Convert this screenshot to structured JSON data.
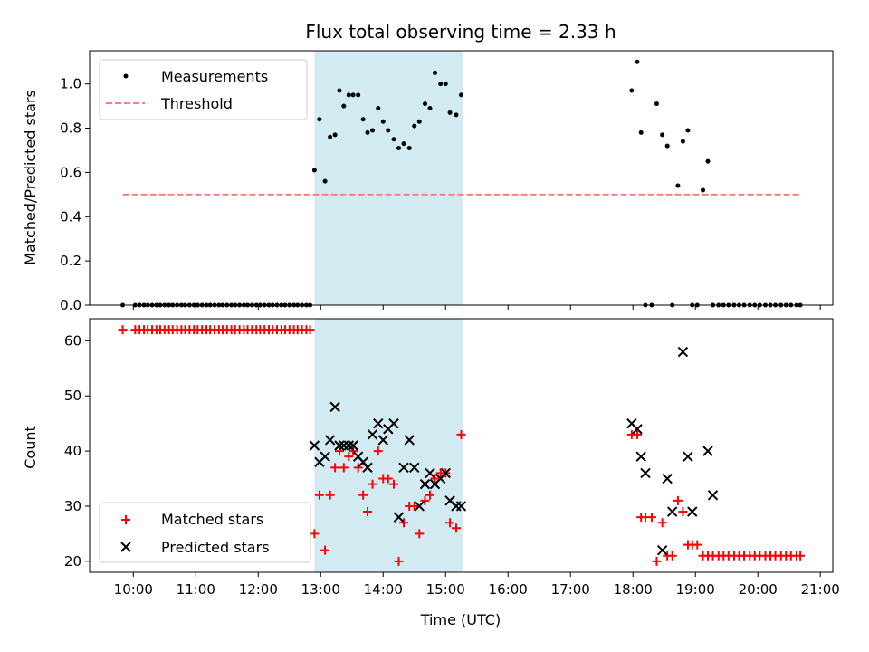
{
  "chart_data": {
    "title": "Flux total observing time = 2.33 h",
    "xlabel": "Time (UTC)",
    "x_units": "decimal hours UTC",
    "xlim": [
      9.3,
      21.2
    ],
    "x_ticks": [
      {
        "value": 10,
        "label": "10:00"
      },
      {
        "value": 11,
        "label": "11:00"
      },
      {
        "value": 12,
        "label": "12:00"
      },
      {
        "value": 13,
        "label": "13:00"
      },
      {
        "value": 14,
        "label": "14:00"
      },
      {
        "value": 15,
        "label": "15:00"
      },
      {
        "value": 16,
        "label": "16:00"
      },
      {
        "value": 17,
        "label": "17:00"
      },
      {
        "value": 18,
        "label": "18:00"
      },
      {
        "value": 19,
        "label": "19:00"
      },
      {
        "value": 20,
        "label": "20:00"
      },
      {
        "value": 21,
        "label": "21:00"
      }
    ],
    "shaded_interval": {
      "x_start": 12.9,
      "x_end": 15.27,
      "color": "#add8e6"
    },
    "panels": [
      {
        "type": "scatter",
        "ylabel": "Matched/Predicted stars",
        "ylim": [
          0,
          1.15
        ],
        "y_ticks": [
          0.0,
          0.2,
          0.4,
          0.6,
          0.8,
          1.0
        ],
        "y_tick_labels": [
          "0.0",
          "0.2",
          "0.4",
          "0.6",
          "0.8",
          "1.0"
        ],
        "legend_position": "upper-left",
        "series": [
          {
            "name": "Measurements",
            "kind": "scatter",
            "marker": "dot",
            "color": "#000000",
            "x": [
              9.83,
              10.03,
              10.1,
              10.17,
              10.23,
              10.3,
              10.37,
              10.43,
              10.5,
              10.57,
              10.63,
              10.7,
              10.77,
              10.83,
              10.9,
              10.97,
              11.03,
              11.1,
              11.17,
              11.23,
              11.3,
              11.37,
              11.43,
              11.5,
              11.57,
              11.63,
              11.7,
              11.77,
              11.83,
              11.9,
              11.97,
              12.03,
              12.1,
              12.17,
              12.23,
              12.3,
              12.37,
              12.43,
              12.5,
              12.57,
              12.63,
              12.7,
              12.77,
              12.83,
              12.9,
              12.98,
              13.07,
              13.15,
              13.23,
              13.3,
              13.37,
              13.45,
              13.52,
              13.6,
              13.68,
              13.75,
              13.83,
              13.92,
              14,
              14.08,
              14.17,
              14.25,
              14.33,
              14.42,
              14.5,
              14.58,
              14.67,
              14.75,
              14.83,
              14.92,
              15,
              15.07,
              15.17,
              15.25,
              17.98,
              18.07,
              18.13,
              18.2,
              18.3,
              18.38,
              18.47,
              18.55,
              18.63,
              18.72,
              18.8,
              18.88,
              18.95,
              19.03,
              19.12,
              19.2,
              19.28,
              19.37,
              19.45,
              19.53,
              19.62,
              19.7,
              19.78,
              19.87,
              19.95,
              20.03,
              20.12,
              20.2,
              20.28,
              20.37,
              20.45,
              20.53,
              20.62,
              20.68
            ],
            "y": [
              0,
              0,
              0,
              0,
              0,
              0,
              0,
              0,
              0,
              0,
              0,
              0,
              0,
              0,
              0,
              0,
              0,
              0,
              0,
              0,
              0,
              0,
              0,
              0,
              0,
              0,
              0,
              0,
              0,
              0,
              0,
              0,
              0,
              0,
              0,
              0,
              0,
              0,
              0,
              0,
              0,
              0,
              0,
              0,
              0.61,
              0.84,
              0.56,
              0.76,
              0.77,
              0.97,
              0.9,
              0.95,
              0.95,
              0.95,
              0.84,
              0.78,
              0.79,
              0.89,
              0.83,
              0.79,
              0.75,
              0.71,
              0.73,
              0.71,
              0.81,
              0.83,
              0.91,
              0.89,
              1.05,
              1.0,
              1.0,
              0.87,
              0.86,
              0.95,
              0.97,
              1.1,
              0.78,
              0,
              0,
              0.91,
              0.77,
              0.72,
              0,
              0.54,
              0.74,
              0.79,
              0,
              0,
              0.52,
              0.65,
              0,
              0,
              0,
              0,
              0,
              0,
              0,
              0,
              0,
              0,
              0,
              0,
              0,
              0,
              0,
              0,
              0,
              0
            ]
          },
          {
            "name": "Threshold",
            "kind": "line",
            "style": "dashed",
            "color": "#ff7f7f",
            "x": [
              9.83,
              20.68
            ],
            "y": [
              0.5,
              0.5
            ]
          }
        ]
      },
      {
        "type": "scatter",
        "ylabel": "Count",
        "ylim": [
          18,
          64
        ],
        "y_ticks": [
          20,
          30,
          40,
          50,
          60
        ],
        "y_tick_labels": [
          "20",
          "30",
          "40",
          "50",
          "60"
        ],
        "legend_position": "lower-left",
        "series": [
          {
            "name": "Matched stars",
            "kind": "scatter",
            "marker": "plus",
            "color": "#ff0000",
            "x": [
              9.83,
              10.03,
              10.1,
              10.17,
              10.23,
              10.3,
              10.37,
              10.43,
              10.5,
              10.57,
              10.63,
              10.7,
              10.77,
              10.83,
              10.9,
              10.97,
              11.03,
              11.1,
              11.17,
              11.23,
              11.3,
              11.37,
              11.43,
              11.5,
              11.57,
              11.63,
              11.7,
              11.77,
              11.83,
              11.9,
              11.97,
              12.03,
              12.1,
              12.17,
              12.23,
              12.3,
              12.37,
              12.43,
              12.5,
              12.57,
              12.63,
              12.7,
              12.77,
              12.83,
              12.9,
              12.98,
              13.07,
              13.15,
              13.23,
              13.3,
              13.37,
              13.45,
              13.52,
              13.6,
              13.68,
              13.75,
              13.83,
              13.92,
              14,
              14.08,
              14.17,
              14.25,
              14.33,
              14.42,
              14.5,
              14.58,
              14.67,
              14.75,
              14.83,
              14.92,
              15,
              15.07,
              15.17,
              15.25,
              17.98,
              18.07,
              18.13,
              18.2,
              18.3,
              18.38,
              18.47,
              18.55,
              18.63,
              18.72,
              18.8,
              18.88,
              18.95,
              19.03,
              19.12,
              19.2,
              19.28,
              19.37,
              19.45,
              19.53,
              19.62,
              19.7,
              19.78,
              19.87,
              19.95,
              20.03,
              20.12,
              20.2,
              20.28,
              20.37,
              20.45,
              20.53,
              20.62,
              20.68
            ],
            "y": [
              62,
              62,
              62,
              62,
              62,
              62,
              62,
              62,
              62,
              62,
              62,
              62,
              62,
              62,
              62,
              62,
              62,
              62,
              62,
              62,
              62,
              62,
              62,
              62,
              62,
              62,
              62,
              62,
              62,
              62,
              62,
              62,
              62,
              62,
              62,
              62,
              62,
              62,
              62,
              62,
              62,
              62,
              62,
              62,
              25,
              32,
              22,
              32,
              37,
              40,
              37,
              39,
              40,
              37,
              32,
              29,
              34,
              40,
              35,
              35,
              34,
              20,
              27,
              30,
              30,
              25,
              31,
              32,
              35,
              36,
              36,
              27,
              26,
              43,
              43,
              43,
              28,
              28,
              28,
              20,
              27,
              21,
              21,
              31,
              29,
              23,
              23,
              23,
              21,
              21,
              21,
              21,
              21,
              21,
              21,
              21,
              21,
              21,
              21,
              21,
              21,
              21,
              21,
              21,
              21,
              21,
              21,
              21
            ]
          },
          {
            "name": "Predicted stars",
            "kind": "scatter",
            "marker": "x",
            "color": "#000000",
            "x": [
              12.9,
              12.98,
              13.07,
              13.15,
              13.23,
              13.3,
              13.37,
              13.45,
              13.52,
              13.6,
              13.68,
              13.75,
              13.83,
              13.92,
              14,
              14.08,
              14.17,
              14.25,
              14.33,
              14.42,
              14.5,
              14.58,
              14.67,
              14.75,
              14.83,
              14.92,
              15,
              15.07,
              15.17,
              15.25,
              17.98,
              18.07,
              18.13,
              18.2,
              18.47,
              18.55,
              18.63,
              18.8,
              18.88,
              18.95,
              19.2,
              19.28
            ],
            "y": [
              41,
              38,
              39,
              42,
              48,
              41,
              41,
              41,
              41,
              39,
              38,
              37,
              43,
              45,
              42,
              44,
              45,
              28,
              37,
              42,
              37,
              30,
              34,
              36,
              34,
              35,
              36,
              31,
              30,
              30,
              45,
              44,
              39,
              36,
              22,
              35,
              29,
              58,
              39,
              29,
              40,
              32
            ]
          }
        ]
      }
    ]
  },
  "colors": {
    "measurements": "#000000",
    "threshold": "#ff7f7f",
    "matched": "#ff0000",
    "predicted": "#000000",
    "shade": "#add8e6"
  }
}
